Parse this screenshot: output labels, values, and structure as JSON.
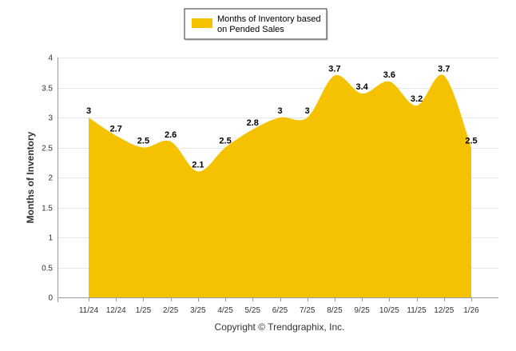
{
  "chart_data": {
    "type": "area",
    "title": "",
    "xlabel": "",
    "ylabel": "Months of Inventory",
    "ylim": [
      0,
      4
    ],
    "yticks": [
      "0",
      "0.5",
      "1",
      "1.5",
      "2",
      "2.5",
      "3",
      "3.5",
      "4"
    ],
    "categories": [
      "11/24",
      "12/24",
      "1/25",
      "2/25",
      "3/25",
      "4/25",
      "5/25",
      "6/25",
      "7/25",
      "8/25",
      "9/25",
      "10/25",
      "11/25",
      "12/25",
      "1/26"
    ],
    "series": [
      {
        "name": "Months of Inventory based on Pended Sales",
        "values": [
          3,
          2.7,
          2.5,
          2.6,
          2.1,
          2.5,
          2.8,
          3,
          3,
          3.7,
          3.4,
          3.6,
          3.2,
          3.7,
          2.5
        ],
        "labels": [
          "3",
          "2.7",
          "2.5",
          "2.6",
          "2.1",
          "2.5",
          "2.8",
          "3",
          "3",
          "3.7",
          "3.4",
          "3.6",
          "3.2",
          "3.7",
          "2.5"
        ],
        "color": "#F5C200"
      }
    ],
    "legend": {
      "lines": [
        "Months of Inventory based",
        "on Pended Sales"
      ],
      "position": "top-center"
    },
    "grid": true
  },
  "footer": {
    "copyright": "Copyright © Trendgraphix, Inc."
  }
}
